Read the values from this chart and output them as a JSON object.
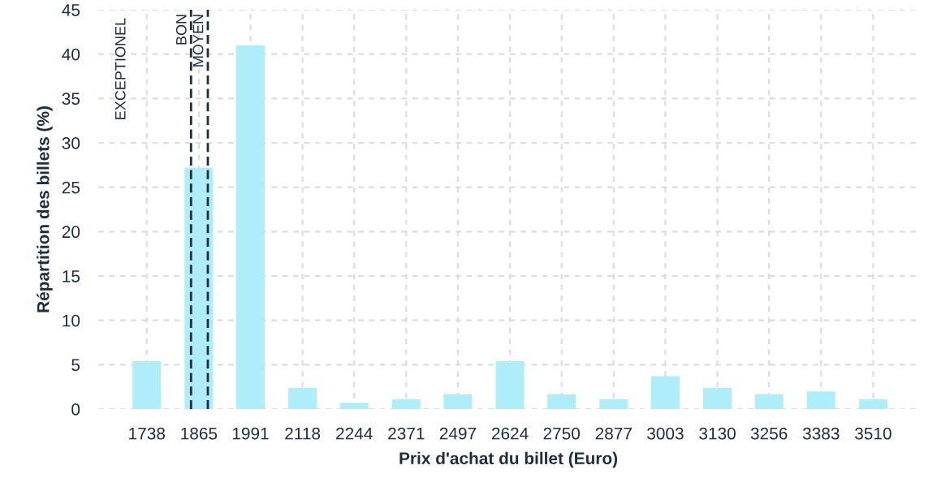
{
  "chart_data": {
    "type": "bar",
    "xlabel": "Prix d'achat du billet (Euro)",
    "ylabel": "Répartition des billets (%)",
    "x": [
      1738,
      1865,
      1991,
      2118,
      2244,
      2371,
      2497,
      2624,
      2750,
      2877,
      3003,
      3130,
      3256,
      3383,
      3510
    ],
    "values": [
      5.4,
      27.2,
      41.0,
      2.4,
      0.7,
      1.1,
      1.7,
      5.4,
      1.7,
      1.1,
      3.7,
      2.4,
      1.7,
      2.0,
      1.1
    ],
    "color": "#aeeef8",
    "xlim": [
      1620,
      3620
    ],
    "xticks": [
      1738,
      1865,
      1991,
      2118,
      2244,
      2371,
      2497,
      2624,
      2750,
      2877,
      3003,
      3130,
      3256,
      3383,
      3510
    ],
    "ylim": [
      0,
      45
    ],
    "yticks": [
      0,
      5,
      10,
      15,
      20,
      25,
      30,
      35,
      40,
      45
    ],
    "grid": true,
    "ref_lines": [
      {
        "axis": "x",
        "value": 1846,
        "label": "BON",
        "color": "#1f2d3d",
        "line_style": "dashed"
      },
      {
        "axis": "x",
        "value": 1887,
        "label": "MOYEN",
        "color": "#1f2d3d",
        "line_style": "dashed"
      }
    ],
    "annotations": [
      "EXCEPTIONEL"
    ]
  }
}
